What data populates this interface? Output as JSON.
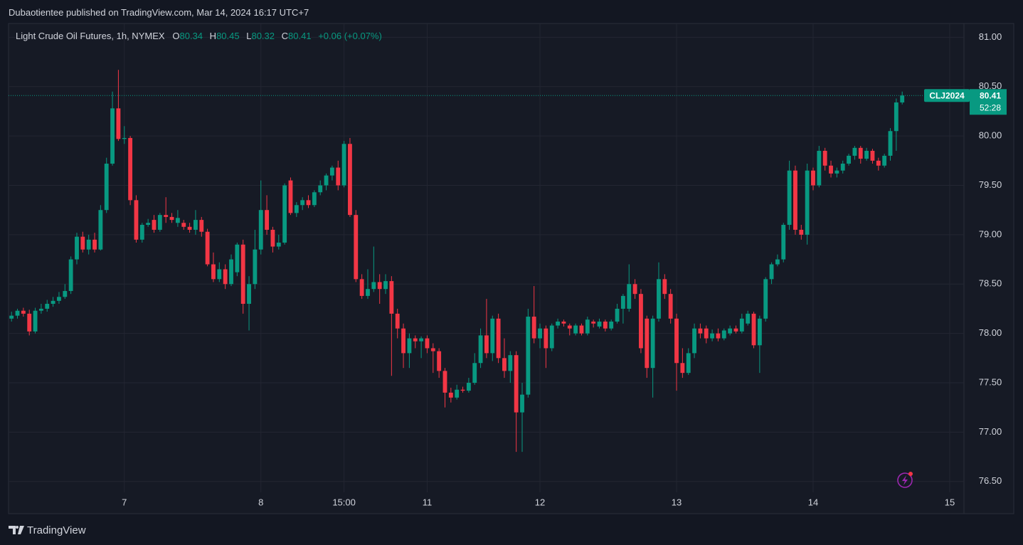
{
  "header": {
    "published": "Dubaotientee published on TradingView.com, Mar 14, 2024 16:17 UTC+7"
  },
  "footer": {
    "brand": "TradingView"
  },
  "chart_data": {
    "type": "candlestick",
    "title": "Light Crude Oil Futures, 1h, NYMEX",
    "ohlc_labels": [
      "O",
      "H",
      "L",
      "C"
    ],
    "change": "+0.06 (+0.07%)",
    "symbol": "CLJ2024",
    "countdown": "52:28",
    "up_color": "#089981",
    "down_color": "#f23645",
    "grid": true,
    "ylim": [
      76.39,
      81.14
    ],
    "yticks": [
      {
        "value": 76.5,
        "label": "76.50"
      },
      {
        "value": 77,
        "label": "77.00"
      },
      {
        "value": 77.5,
        "label": "77.50"
      },
      {
        "value": 78,
        "label": "78.00"
      },
      {
        "value": 78.5,
        "label": "78.50"
      },
      {
        "value": 79,
        "label": "79.00"
      },
      {
        "value": 79.5,
        "label": "79.50"
      },
      {
        "value": 80,
        "label": "80.00"
      },
      {
        "value": 80.5,
        "label": "80.50"
      },
      {
        "value": 81,
        "label": "81.00"
      }
    ],
    "xlim": [
      -0.5,
      160.4
    ],
    "xticks": [
      {
        "value": 19,
        "label": "7"
      },
      {
        "value": 42,
        "label": "8"
      },
      {
        "value": 56,
        "label": "15:00"
      },
      {
        "value": 70,
        "label": "11"
      },
      {
        "value": 89,
        "label": "12"
      },
      {
        "value": 112,
        "label": "13"
      },
      {
        "value": 135,
        "label": "14"
      },
      {
        "value": 158,
        "label": "15"
      }
    ],
    "ohlc": [
      [
        78.15,
        78.22,
        78.12,
        78.18
      ],
      [
        78.18,
        78.25,
        78.15,
        78.23
      ],
      [
        78.23,
        78.26,
        78.17,
        78.2
      ],
      [
        78.2,
        78.24,
        77.98,
        78.02
      ],
      [
        78.02,
        78.26,
        78.0,
        78.23
      ],
      [
        78.23,
        78.3,
        78.2,
        78.25
      ],
      [
        78.25,
        78.34,
        78.22,
        78.3
      ],
      [
        78.3,
        78.37,
        78.27,
        78.33
      ],
      [
        78.33,
        78.42,
        78.3,
        78.37
      ],
      [
        78.37,
        78.5,
        78.35,
        78.43
      ],
      [
        78.43,
        78.78,
        78.4,
        78.75
      ],
      [
        78.75,
        79.02,
        78.7,
        78.98
      ],
      [
        78.98,
        79.03,
        78.82,
        78.85
      ],
      [
        78.85,
        79.0,
        78.8,
        78.95
      ],
      [
        78.95,
        79.02,
        78.82,
        78.85
      ],
      [
        78.85,
        79.3,
        78.84,
        79.25
      ],
      [
        79.25,
        79.78,
        79.22,
        79.72
      ],
      [
        79.72,
        80.45,
        79.7,
        80.28
      ],
      [
        80.28,
        80.67,
        79.95,
        79.97
      ],
      [
        79.97,
        80.1,
        79.92,
        79.98
      ],
      [
        79.98,
        80.0,
        79.3,
        79.35
      ],
      [
        79.35,
        79.4,
        78.92,
        78.95
      ],
      [
        78.95,
        79.12,
        78.92,
        79.1
      ],
      [
        79.1,
        79.16,
        79.08,
        79.12
      ],
      [
        79.15,
        79.2,
        79.02,
        79.05
      ],
      [
        79.05,
        79.22,
        79.03,
        79.2
      ],
      [
        79.2,
        79.38,
        79.12,
        79.18
      ],
      [
        79.18,
        79.22,
        79.12,
        79.15
      ],
      [
        79.12,
        79.25,
        79.08,
        79.17
      ],
      [
        79.12,
        79.15,
        79.05,
        79.08
      ],
      [
        79.08,
        79.12,
        79.02,
        79.05
      ],
      [
        79.05,
        79.25,
        79.0,
        79.15
      ],
      [
        79.15,
        79.18,
        78.98,
        79.03
      ],
      [
        79.03,
        79.06,
        78.68,
        78.7
      ],
      [
        78.7,
        78.82,
        78.52,
        78.55
      ],
      [
        78.55,
        78.72,
        78.52,
        78.65
      ],
      [
        78.65,
        78.7,
        78.45,
        78.5
      ],
      [
        78.5,
        78.8,
        78.48,
        78.75
      ],
      [
        78.62,
        78.92,
        78.58,
        78.9
      ],
      [
        78.9,
        78.95,
        78.2,
        78.3
      ],
      [
        78.3,
        78.58,
        78.03,
        78.5
      ],
      [
        78.5,
        79.05,
        78.45,
        78.85
      ],
      [
        78.85,
        79.55,
        78.8,
        79.25
      ],
      [
        79.25,
        79.4,
        79.0,
        79.05
      ],
      [
        79.05,
        79.08,
        78.82,
        78.88
      ],
      [
        78.88,
        79.0,
        78.85,
        78.92
      ],
      [
        78.92,
        79.52,
        78.9,
        79.5
      ],
      [
        79.55,
        79.58,
        79.2,
        79.22
      ],
      [
        79.22,
        79.33,
        79.18,
        79.3
      ],
      [
        79.3,
        79.38,
        79.25,
        79.35
      ],
      [
        79.35,
        79.4,
        79.27,
        79.3
      ],
      [
        79.3,
        79.45,
        79.28,
        79.43
      ],
      [
        79.43,
        79.55,
        79.4,
        79.5
      ],
      [
        79.5,
        79.62,
        79.45,
        79.6
      ],
      [
        79.6,
        79.7,
        79.55,
        79.68
      ],
      [
        79.68,
        79.75,
        79.45,
        79.5
      ],
      [
        79.5,
        79.95,
        79.48,
        79.92
      ],
      [
        79.92,
        79.98,
        79.18,
        79.2
      ],
      [
        79.2,
        79.25,
        78.52,
        78.55
      ],
      [
        78.55,
        78.6,
        78.35,
        78.38
      ],
      [
        78.38,
        78.65,
        78.35,
        78.45
      ],
      [
        78.45,
        78.88,
        78.42,
        78.52
      ],
      [
        78.52,
        78.6,
        78.3,
        78.45
      ],
      [
        78.45,
        78.6,
        78.4,
        78.53
      ],
      [
        78.53,
        78.58,
        77.57,
        78.2
      ],
      [
        78.2,
        78.25,
        77.95,
        78.05
      ],
      [
        78.05,
        78.1,
        77.65,
        77.8
      ],
      [
        77.8,
        78.0,
        77.65,
        77.95
      ],
      [
        77.95,
        77.98,
        77.85,
        77.92
      ],
      [
        77.92,
        77.97,
        77.75,
        77.95
      ],
      [
        77.95,
        77.98,
        77.8,
        77.85
      ],
      [
        77.85,
        77.9,
        77.6,
        77.82
      ],
      [
        77.82,
        77.85,
        77.55,
        77.62
      ],
      [
        77.62,
        77.65,
        77.25,
        77.4
      ],
      [
        77.4,
        77.45,
        77.3,
        77.35
      ],
      [
        77.35,
        77.48,
        77.33,
        77.43
      ],
      [
        77.43,
        77.46,
        77.4,
        77.42
      ],
      [
        77.42,
        77.55,
        77.4,
        77.5
      ],
      [
        77.5,
        77.8,
        77.48,
        77.7
      ],
      [
        77.7,
        78.05,
        77.65,
        77.98
      ],
      [
        77.98,
        78.35,
        77.75,
        77.8
      ],
      [
        77.8,
        78.18,
        77.72,
        78.15
      ],
      [
        78.15,
        78.2,
        77.7,
        77.75
      ],
      [
        77.75,
        77.95,
        77.55,
        77.62
      ],
      [
        77.62,
        77.82,
        77.5,
        77.78
      ],
      [
        77.78,
        77.82,
        76.8,
        77.2
      ],
      [
        77.2,
        77.5,
        76.8,
        77.38
      ],
      [
        77.38,
        78.25,
        77.35,
        78.17
      ],
      [
        78.17,
        78.48,
        77.9,
        77.95
      ],
      [
        77.95,
        78.1,
        77.85,
        78.05
      ],
      [
        78.05,
        78.08,
        77.65,
        77.85
      ],
      [
        77.85,
        78.1,
        77.82,
        78.08
      ],
      [
        78.08,
        78.15,
        78.05,
        78.12
      ],
      [
        78.12,
        78.14,
        78.07,
        78.1
      ],
      [
        78.08,
        78.1,
        77.98,
        78.05
      ],
      [
        78.0,
        78.1,
        77.98,
        78.08
      ],
      [
        78.08,
        78.1,
        77.98,
        78.0
      ],
      [
        78.0,
        78.17,
        77.98,
        78.14
      ],
      [
        78.12,
        78.14,
        78.06,
        78.1
      ],
      [
        78.07,
        78.15,
        78.05,
        78.12
      ],
      [
        78.12,
        78.14,
        78.02,
        78.05
      ],
      [
        78.05,
        78.14,
        78.03,
        78.12
      ],
      [
        78.12,
        78.3,
        78.1,
        78.25
      ],
      [
        78.25,
        78.4,
        78.1,
        78.38
      ],
      [
        78.25,
        78.7,
        78.22,
        78.5
      ],
      [
        78.5,
        78.55,
        78.35,
        78.4
      ],
      [
        78.4,
        78.45,
        77.8,
        77.85
      ],
      [
        78.15,
        78.18,
        77.55,
        77.65
      ],
      [
        77.65,
        78.18,
        77.35,
        78.15
      ],
      [
        78.15,
        78.72,
        78.12,
        78.55
      ],
      [
        78.55,
        78.6,
        78.35,
        78.4
      ],
      [
        78.4,
        78.45,
        78.1,
        78.15
      ],
      [
        78.15,
        78.2,
        77.42,
        77.7
      ],
      [
        77.7,
        77.85,
        77.55,
        77.6
      ],
      [
        77.6,
        77.85,
        77.58,
        77.8
      ],
      [
        77.8,
        78.1,
        77.75,
        78.05
      ],
      [
        78.05,
        78.1,
        77.95,
        78.0
      ],
      [
        78.05,
        78.08,
        77.9,
        77.95
      ],
      [
        77.95,
        78.04,
        77.92,
        78.0
      ],
      [
        78.0,
        78.05,
        77.92,
        77.95
      ],
      [
        77.95,
        78.05,
        77.93,
        78.03
      ],
      [
        78.0,
        78.08,
        77.98,
        78.05
      ],
      [
        78.05,
        78.08,
        78.0,
        78.02
      ],
      [
        78.02,
        78.2,
        78.0,
        78.15
      ],
      [
        78.1,
        78.23,
        78.08,
        78.2
      ],
      [
        78.2,
        78.22,
        77.85,
        77.88
      ],
      [
        77.88,
        78.18,
        77.6,
        78.15
      ],
      [
        78.15,
        78.57,
        78.12,
        78.55
      ],
      [
        78.55,
        78.72,
        78.5,
        78.7
      ],
      [
        78.7,
        78.8,
        78.68,
        78.75
      ],
      [
        78.75,
        79.12,
        78.72,
        79.1
      ],
      [
        79.1,
        79.75,
        79.05,
        79.65
      ],
      [
        79.65,
        79.7,
        79.0,
        79.05
      ],
      [
        79.05,
        79.1,
        78.95,
        79.0
      ],
      [
        79.0,
        79.72,
        78.9,
        79.65
      ],
      [
        79.65,
        79.68,
        79.45,
        79.5
      ],
      [
        79.5,
        79.9,
        79.48,
        79.85
      ],
      [
        79.85,
        79.88,
        79.65,
        79.7
      ],
      [
        79.7,
        79.75,
        79.58,
        79.62
      ],
      [
        79.62,
        79.68,
        79.58,
        79.65
      ],
      [
        79.65,
        79.75,
        79.62,
        79.72
      ],
      [
        79.72,
        79.82,
        79.7,
        79.8
      ],
      [
        79.8,
        79.9,
        79.76,
        79.88
      ],
      [
        79.88,
        79.9,
        79.72,
        79.77
      ],
      [
        79.77,
        79.88,
        79.75,
        79.85
      ],
      [
        79.85,
        79.87,
        79.72,
        79.75
      ],
      [
        79.75,
        79.78,
        79.65,
        79.7
      ],
      [
        79.7,
        79.82,
        79.68,
        79.8
      ],
      [
        79.8,
        80.08,
        79.75,
        80.05
      ],
      [
        80.05,
        80.38,
        79.85,
        80.34
      ],
      [
        80.34,
        80.45,
        80.32,
        80.41
      ]
    ]
  }
}
